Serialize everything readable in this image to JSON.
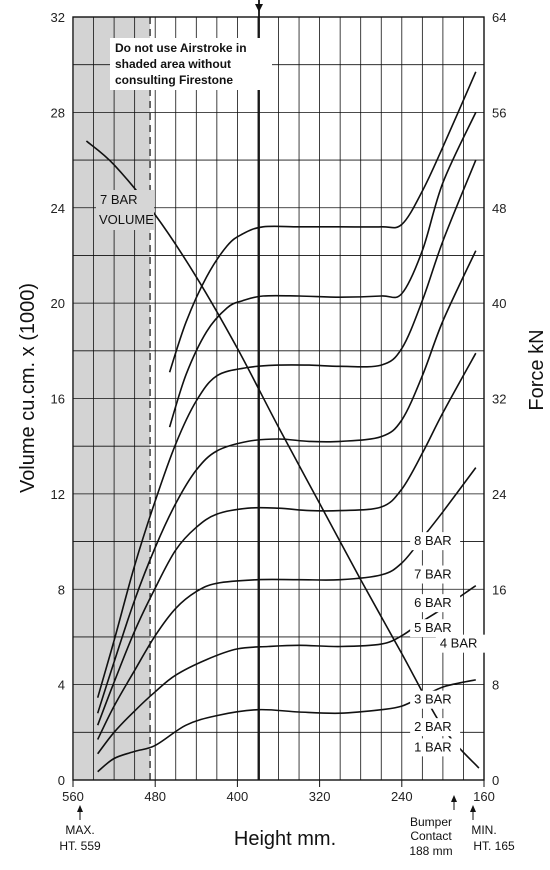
{
  "chart_data": {
    "type": "line",
    "xlabel": "Height mm.",
    "ylabel_left": "Volume cu.cm. x (1000)",
    "ylabel_right": "Force kN",
    "x_ticks": [
      "560",
      "480",
      "400",
      "320",
      "240",
      "160"
    ],
    "x_ticks_values": [
      560,
      480,
      400,
      320,
      240,
      160
    ],
    "xlim": [
      560,
      160
    ],
    "y_left_ticks": [
      "0",
      "4",
      "8",
      "12",
      "16",
      "20",
      "24",
      "28",
      "32"
    ],
    "y_left_values": [
      0,
      4,
      8,
      12,
      16,
      20,
      24,
      28,
      32
    ],
    "ylim_left": [
      0,
      32
    ],
    "y_right_ticks": [
      "0",
      "8",
      "16",
      "24",
      "32",
      "40",
      "48",
      "56",
      "64"
    ],
    "y_right_values": [
      0,
      8,
      16,
      24,
      32,
      40,
      48,
      56,
      64
    ],
    "ylim_right": [
      0,
      64
    ],
    "shaded_region": [
      559,
      485
    ],
    "grid": true,
    "series": [
      {
        "name": "1 BAR",
        "points": [
          [
            536,
            0.7
          ],
          [
            520,
            1.8
          ],
          [
            500,
            2.4
          ],
          [
            480,
            2.9
          ],
          [
            450,
            4.6
          ],
          [
            420,
            5.4
          ],
          [
            380,
            5.9
          ],
          [
            340,
            5.7
          ],
          [
            300,
            5.6
          ],
          [
            260,
            5.9
          ],
          [
            240,
            6.2
          ],
          [
            220,
            7.0
          ],
          [
            200,
            7.8
          ],
          [
            180,
            8.2
          ],
          [
            168,
            8.4
          ]
        ]
      },
      {
        "name": "2 BAR",
        "points": [
          [
            536,
            2.2
          ],
          [
            520,
            4.0
          ],
          [
            500,
            5.8
          ],
          [
            480,
            7.4
          ],
          [
            460,
            8.8
          ],
          [
            430,
            10.1
          ],
          [
            400,
            11.0
          ],
          [
            370,
            11.2
          ],
          [
            340,
            11.3
          ],
          [
            300,
            11.2
          ],
          [
            260,
            11.4
          ],
          [
            240,
            12.1
          ],
          [
            220,
            13.3
          ],
          [
            200,
            14.4
          ],
          [
            168,
            16.3
          ]
        ]
      },
      {
        "name": "3 BAR",
        "points": [
          [
            536,
            3.4
          ],
          [
            520,
            6.2
          ],
          [
            500,
            9.2
          ],
          [
            480,
            12.1
          ],
          [
            460,
            14.4
          ],
          [
            440,
            15.8
          ],
          [
            420,
            16.5
          ],
          [
            380,
            16.8
          ],
          [
            340,
            16.8
          ],
          [
            300,
            16.8
          ],
          [
            260,
            17.2
          ],
          [
            240,
            18.2
          ],
          [
            220,
            20.3
          ],
          [
            200,
            22.5
          ],
          [
            168,
            26.2
          ]
        ]
      },
      {
        "name": "4 BAR",
        "points": [
          [
            536,
            4.6
          ],
          [
            520,
            8.2
          ],
          [
            500,
            12.5
          ],
          [
            480,
            16.1
          ],
          [
            460,
            19.3
          ],
          [
            440,
            21.2
          ],
          [
            420,
            22.3
          ],
          [
            390,
            22.8
          ],
          [
            360,
            22.8
          ],
          [
            330,
            22.6
          ],
          [
            300,
            22.6
          ],
          [
            260,
            22.9
          ],
          [
            240,
            24.4
          ],
          [
            220,
            27.4
          ],
          [
            200,
            30.8
          ],
          [
            168,
            35.8
          ]
        ]
      },
      {
        "name": "5 BAR",
        "points": [
          [
            536,
            5.6
          ],
          [
            520,
            9.9
          ],
          [
            500,
            15.1
          ],
          [
            480,
            19.5
          ],
          [
            460,
            23.2
          ],
          [
            440,
            26.0
          ],
          [
            420,
            27.6
          ],
          [
            390,
            28.4
          ],
          [
            360,
            28.6
          ],
          [
            330,
            28.4
          ],
          [
            300,
            28.4
          ],
          [
            260,
            28.8
          ],
          [
            240,
            30.2
          ],
          [
            220,
            33.9
          ],
          [
            200,
            38.5
          ],
          [
            168,
            44.4
          ]
        ]
      },
      {
        "name": "6 BAR",
        "points": [
          [
            536,
            6.9
          ],
          [
            520,
            11.7
          ],
          [
            500,
            18.0
          ],
          [
            480,
            23.4
          ],
          [
            460,
            28.2
          ],
          [
            440,
            31.8
          ],
          [
            420,
            33.9
          ],
          [
            390,
            34.6
          ],
          [
            360,
            34.8
          ],
          [
            330,
            34.8
          ],
          [
            300,
            34.7
          ],
          [
            260,
            34.8
          ],
          [
            240,
            36.2
          ],
          [
            220,
            40.2
          ],
          [
            200,
            45.2
          ],
          [
            168,
            52.0
          ]
        ]
      },
      {
        "name": "7 BAR",
        "points": [
          [
            466,
            29.6
          ],
          [
            450,
            34.0
          ],
          [
            430,
            37.6
          ],
          [
            410,
            39.6
          ],
          [
            395,
            40.2
          ],
          [
            375,
            40.6
          ],
          [
            340,
            40.6
          ],
          [
            300,
            40.5
          ],
          [
            260,
            40.6
          ],
          [
            240,
            40.8
          ],
          [
            220,
            44.4
          ],
          [
            200,
            50.1
          ],
          [
            168,
            56.0
          ]
        ]
      },
      {
        "name": "8 BAR",
        "points": [
          [
            466,
            34.2
          ],
          [
            450,
            38.4
          ],
          [
            430,
            42.2
          ],
          [
            410,
            44.8
          ],
          [
            395,
            45.8
          ],
          [
            375,
            46.4
          ],
          [
            340,
            46.4
          ],
          [
            300,
            46.4
          ],
          [
            260,
            46.4
          ],
          [
            240,
            46.6
          ],
          [
            220,
            49.4
          ],
          [
            200,
            53.1
          ],
          [
            168,
            59.4
          ]
        ]
      },
      {
        "name": "7 BAR VOLUME",
        "axis": "left",
        "points": [
          [
            547,
            26.8
          ],
          [
            520,
            25.8
          ],
          [
            480,
            23.7
          ],
          [
            440,
            21.1
          ],
          [
            400,
            18.1
          ],
          [
            360,
            14.8
          ],
          [
            320,
            11.6
          ],
          [
            280,
            8.4
          ],
          [
            240,
            5.3
          ],
          [
            200,
            2.2
          ],
          [
            165,
            0.5
          ]
        ]
      }
    ],
    "series_labels": [
      {
        "text": "1 BAR",
        "x": 228,
        "y": 1.2
      },
      {
        "text": "2 BAR",
        "x": 228,
        "y": 2.05
      },
      {
        "text": "3 BAR",
        "x": 228,
        "y": 3.2
      },
      {
        "text": "4 BAR",
        "x": 203,
        "y": 5.55
      },
      {
        "text": "5 BAR",
        "x": 228,
        "y": 6.2
      },
      {
        "text": "6 BAR",
        "x": 228,
        "y": 7.25
      },
      {
        "text": "7 BAR",
        "x": 228,
        "y": 8.45
      },
      {
        "text": "8 BAR",
        "x": 228,
        "y": 9.85
      }
    ]
  },
  "annotations": {
    "warning_line1": "Do not use Airstroke in",
    "warning_line2": "shaded area without",
    "warning_line3": "consulting Firestone",
    "volume_line1": "7 BAR",
    "volume_line2": "VOLUME",
    "max_line1": "MAX.",
    "max_line2": "HT. 559",
    "bumper_line1": "Bumper",
    "bumper_line2": "Contact",
    "bumper_line3": "188 mm",
    "min_line1": "MIN.",
    "min_line2": "HT. 165"
  }
}
